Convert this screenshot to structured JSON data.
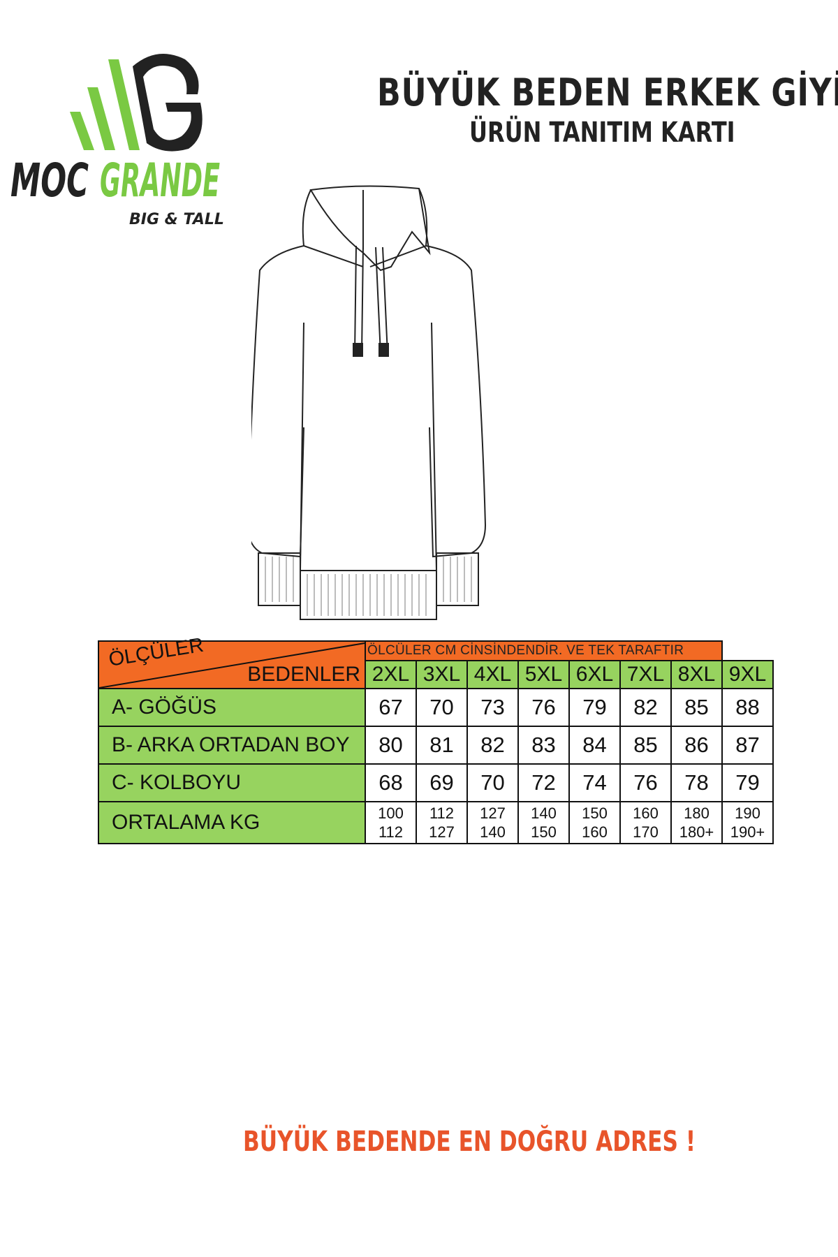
{
  "brand": {
    "logo_text_dark": "MOC",
    "logo_text_green": "GRANDE",
    "tagline": "BIG & TALL",
    "colors": {
      "green": "#7ac943",
      "dark": "#222222",
      "orange": "#f26a24",
      "table_green": "#97d35f",
      "footer": "#e8542a"
    }
  },
  "header": {
    "title": "BÜYÜK BEDEN ERKEK GİYİM",
    "subtitle": "ÜRÜN TANITIM KARTI"
  },
  "product_illustration": "hoodie-line-drawing",
  "size_table": {
    "corner_left": "ÖLÇÜLER",
    "corner_right": "BEDENLER",
    "note": "ÖLCÜLER CM CİNSİNDENDİR. VE TEK TARAFTIR",
    "sizes": [
      "2XL",
      "3XL",
      "4XL",
      "5XL",
      "6XL",
      "7XL",
      "8XL",
      "9XL"
    ],
    "rows": [
      {
        "label": "A- GÖĞÜS",
        "values": [
          "67",
          "70",
          "73",
          "76",
          "79",
          "82",
          "85",
          "88"
        ]
      },
      {
        "label": "B- ARKA ORTADAN BOY",
        "values": [
          "80",
          "81",
          "82",
          "83",
          "84",
          "85",
          "86",
          "87"
        ]
      },
      {
        "label": "C- KOLBOYU",
        "values": [
          "68",
          "69",
          "70",
          "72",
          "74",
          "76",
          "78",
          "79"
        ]
      }
    ],
    "kg_row": {
      "label": "ORTALAMA KG",
      "values": [
        [
          "100",
          "112"
        ],
        [
          "112",
          "127"
        ],
        [
          "127",
          "140"
        ],
        [
          "140",
          "150"
        ],
        [
          "150",
          "160"
        ],
        [
          "160",
          "170"
        ],
        [
          "180",
          "180+"
        ],
        [
          "190",
          "190+"
        ]
      ]
    }
  },
  "footer": {
    "slogan": "BÜYÜK BEDENDE EN DOĞRU ADRES !"
  }
}
